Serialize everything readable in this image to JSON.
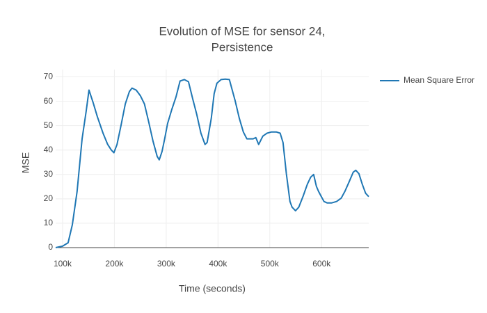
{
  "chart_data": {
    "type": "line",
    "title": [
      "Evolution of MSE for sensor 24,",
      "Persistence"
    ],
    "x_label": "Time (seconds)",
    "y_label": "MSE",
    "xlim": [
      86600,
      691000
    ],
    "ylim": [
      0,
      73
    ],
    "xticks": [
      {
        "value": 100000,
        "label": "100k"
      },
      {
        "value": 200000,
        "label": "200k"
      },
      {
        "value": 300000,
        "label": "300k"
      },
      {
        "value": 400000,
        "label": "400k"
      },
      {
        "value": 500000,
        "label": "500k"
      },
      {
        "value": 600000,
        "label": "600k"
      }
    ],
    "yticks": [
      0,
      10,
      20,
      30,
      40,
      50,
      60,
      70
    ],
    "grid": true,
    "legend": "right",
    "x": [
      86600,
      100000,
      110700,
      118800,
      128000,
      137600,
      145600,
      151000,
      159000,
      167000,
      178000,
      187000,
      194000,
      199000,
      205000,
      213000,
      221000,
      229000,
      234000,
      242000,
      250000,
      258000,
      266000,
      274500,
      282500,
      286600,
      292000,
      297000,
      302700,
      310700,
      318800,
      326800,
      335000,
      343000,
      351000,
      359000,
      367000,
      375000,
      379000,
      387000,
      392600,
      398000,
      406000,
      414000,
      422000,
      427500,
      433000,
      441000,
      449000,
      455700,
      467800,
      473000,
      478500,
      486600,
      494600,
      502700,
      513000,
      520000,
      525500,
      532000,
      539000,
      543000,
      549700,
      556000,
      564400,
      572500,
      579000,
      584600,
      590000,
      594000,
      599000,
      604700,
      611000,
      619000,
      628900,
      638000,
      645000,
      653000,
      661000,
      666000,
      672000,
      678500,
      685000,
      691000
    ],
    "series": [
      {
        "name": "Mean Square Error",
        "color": "#1f77b4",
        "values": [
          0,
          0.6,
          2,
          9.4,
          23,
          44.6,
          56,
          64.6,
          59.4,
          53.7,
          46.9,
          42.3,
          40,
          38.9,
          42.3,
          50.3,
          58.9,
          64,
          65.4,
          64.6,
          62.3,
          58.9,
          51.7,
          43.7,
          37.4,
          36,
          39.4,
          44.6,
          50.9,
          56.6,
          61.7,
          68.3,
          68.9,
          68,
          61.1,
          54.6,
          46.9,
          42.3,
          43.1,
          53,
          63.1,
          67.4,
          68.9,
          69.1,
          68.9,
          64.6,
          60.3,
          53.1,
          47.4,
          44.6,
          44.6,
          45.1,
          42.3,
          45.7,
          46.9,
          47.4,
          47.4,
          46.9,
          43.1,
          30.3,
          18.9,
          16.6,
          15.1,
          16.6,
          21.1,
          26,
          28.9,
          30,
          25.1,
          23.1,
          21.1,
          18.9,
          18.3,
          18.3,
          18.9,
          20.3,
          23.1,
          26.9,
          30.9,
          31.7,
          30.3,
          26,
          22.3,
          20.9
        ]
      }
    ]
  }
}
